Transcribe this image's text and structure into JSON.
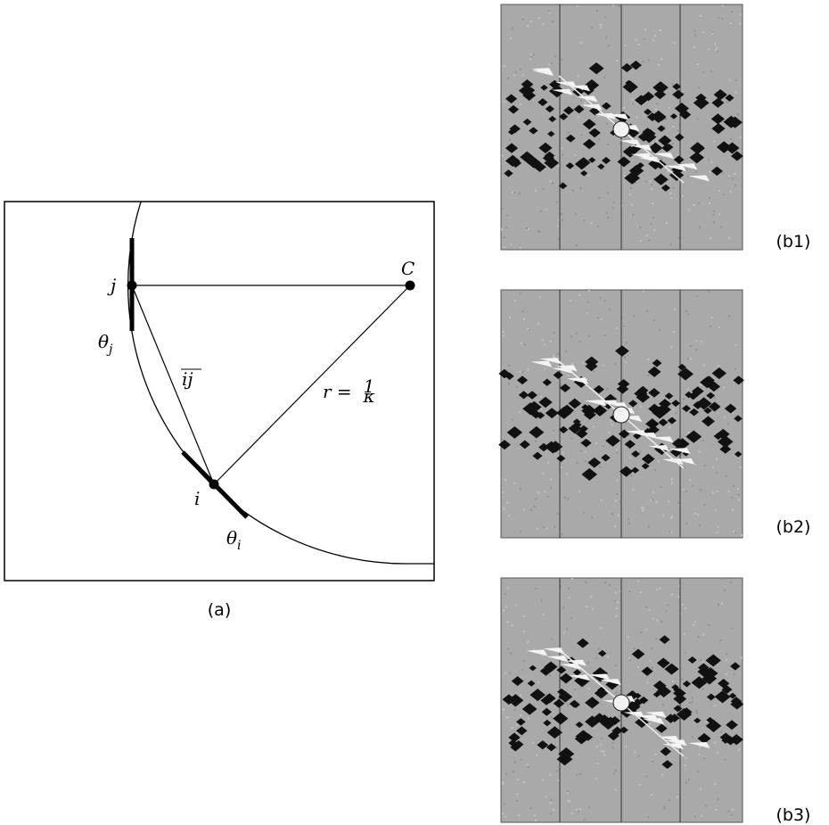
{
  "panel_a": {
    "caption": "(a)",
    "labels": {
      "j": "j",
      "C": "C",
      "theta_j": {
        "symbol": "θ",
        "subscript": "j"
      },
      "ij": "ij",
      "r": {
        "lhs": "r =",
        "numerator": "1",
        "denominator": "κ"
      },
      "i": "i",
      "theta_i": {
        "symbol": "θ",
        "subscript": "i"
      }
    }
  },
  "panel_b": {
    "captions": [
      "(b1)",
      "(b2)",
      "(b3)"
    ]
  }
}
